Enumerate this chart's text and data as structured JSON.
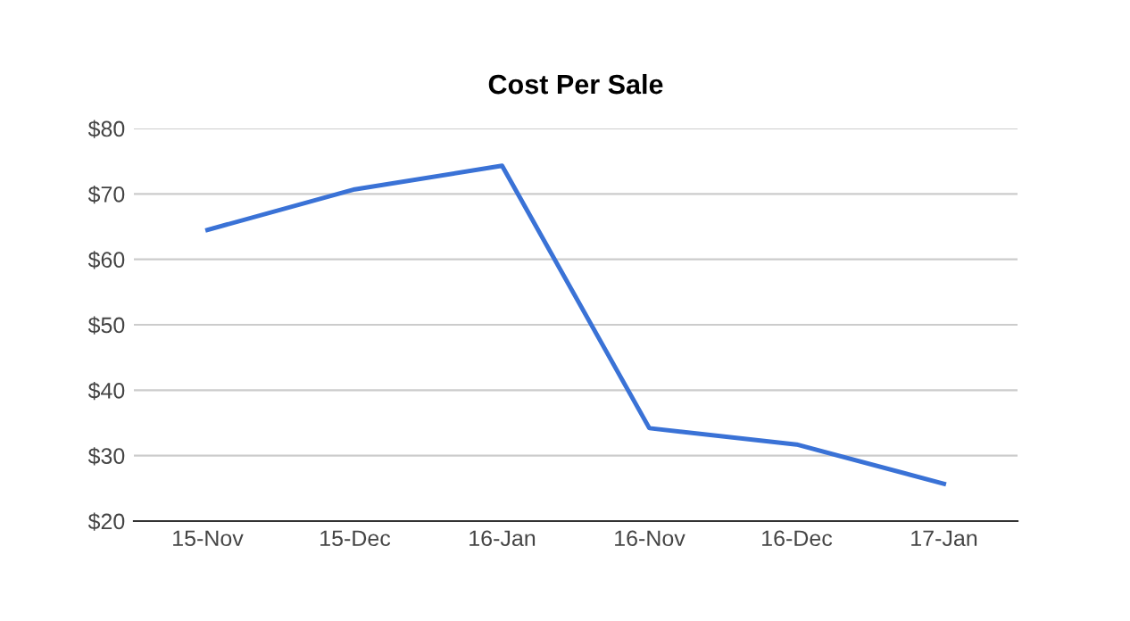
{
  "chart_data": {
    "type": "line",
    "title": "Cost Per Sale",
    "categories": [
      "15-Nov",
      "15-Dec",
      "16-Jan",
      "16-Nov",
      "16-Dec",
      "17-Jan"
    ],
    "series": [
      {
        "color": "#3a72d6",
        "values": [
          64.5,
          70.7,
          74.3,
          34.2,
          31.7,
          25.7
        ]
      }
    ],
    "ylim": [
      20,
      80
    ],
    "yticks": [
      {
        "value": 20,
        "label": "$20"
      },
      {
        "value": 30,
        "label": "$30"
      },
      {
        "value": 40,
        "label": "$40"
      },
      {
        "value": 50,
        "label": "$50"
      },
      {
        "value": 60,
        "label": "$60"
      },
      {
        "value": 70,
        "label": "$70"
      },
      {
        "value": 80,
        "label": "$80"
      }
    ],
    "grid": "y",
    "marker": "none",
    "line_style": "solid"
  }
}
